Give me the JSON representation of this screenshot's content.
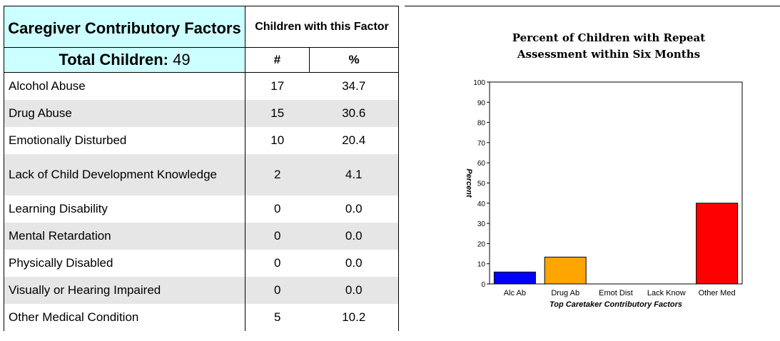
{
  "table": {
    "title": "Caregiver Contributory Factors",
    "total_label": "Total Children:",
    "total_value": "49",
    "children_header": "Children with this Factor",
    "col_count": "#",
    "col_percent": "%",
    "rows": [
      {
        "factor": "Alcohol Abuse",
        "count": "17",
        "percent": "34.7"
      },
      {
        "factor": "Drug Abuse",
        "count": "15",
        "percent": "30.6"
      },
      {
        "factor": "Emotionally Disturbed",
        "count": "10",
        "percent": "20.4"
      },
      {
        "factor": "Lack of Child Development Knowledge",
        "count": "2",
        "percent": "4.1"
      },
      {
        "factor": "Learning Disability",
        "count": "0",
        "percent": "0.0"
      },
      {
        "factor": "Mental Retardation",
        "count": "0",
        "percent": "0.0"
      },
      {
        "factor": "Physically Disabled",
        "count": "0",
        "percent": "0.0"
      },
      {
        "factor": "Visually or Hearing Impaired",
        "count": "0",
        "percent": "0.0"
      },
      {
        "factor": "Other Medical Condition",
        "count": "5",
        "percent": "10.2"
      }
    ]
  },
  "chart_data": {
    "type": "bar",
    "title": "Percent of Children with Repeat Assessment within Six Months",
    "title_lines": [
      "Percent of Children with Repeat",
      "Assessment within Six Months"
    ],
    "xlabel": "Top Caretaker Contributory Factors",
    "ylabel": "Percent",
    "ylim": [
      0,
      100
    ],
    "yticks": [
      0,
      10,
      20,
      30,
      40,
      50,
      60,
      70,
      80,
      90,
      100
    ],
    "categories": [
      "Alc Ab",
      "Drug Ab",
      "Emot Dist",
      "Lack Know",
      "Other Med"
    ],
    "values": [
      5.9,
      13.3,
      0,
      0,
      40
    ],
    "colors": [
      "#0000ff",
      "#ffa500",
      "#808080",
      "#808080",
      "#ff0000"
    ],
    "grid": false
  }
}
